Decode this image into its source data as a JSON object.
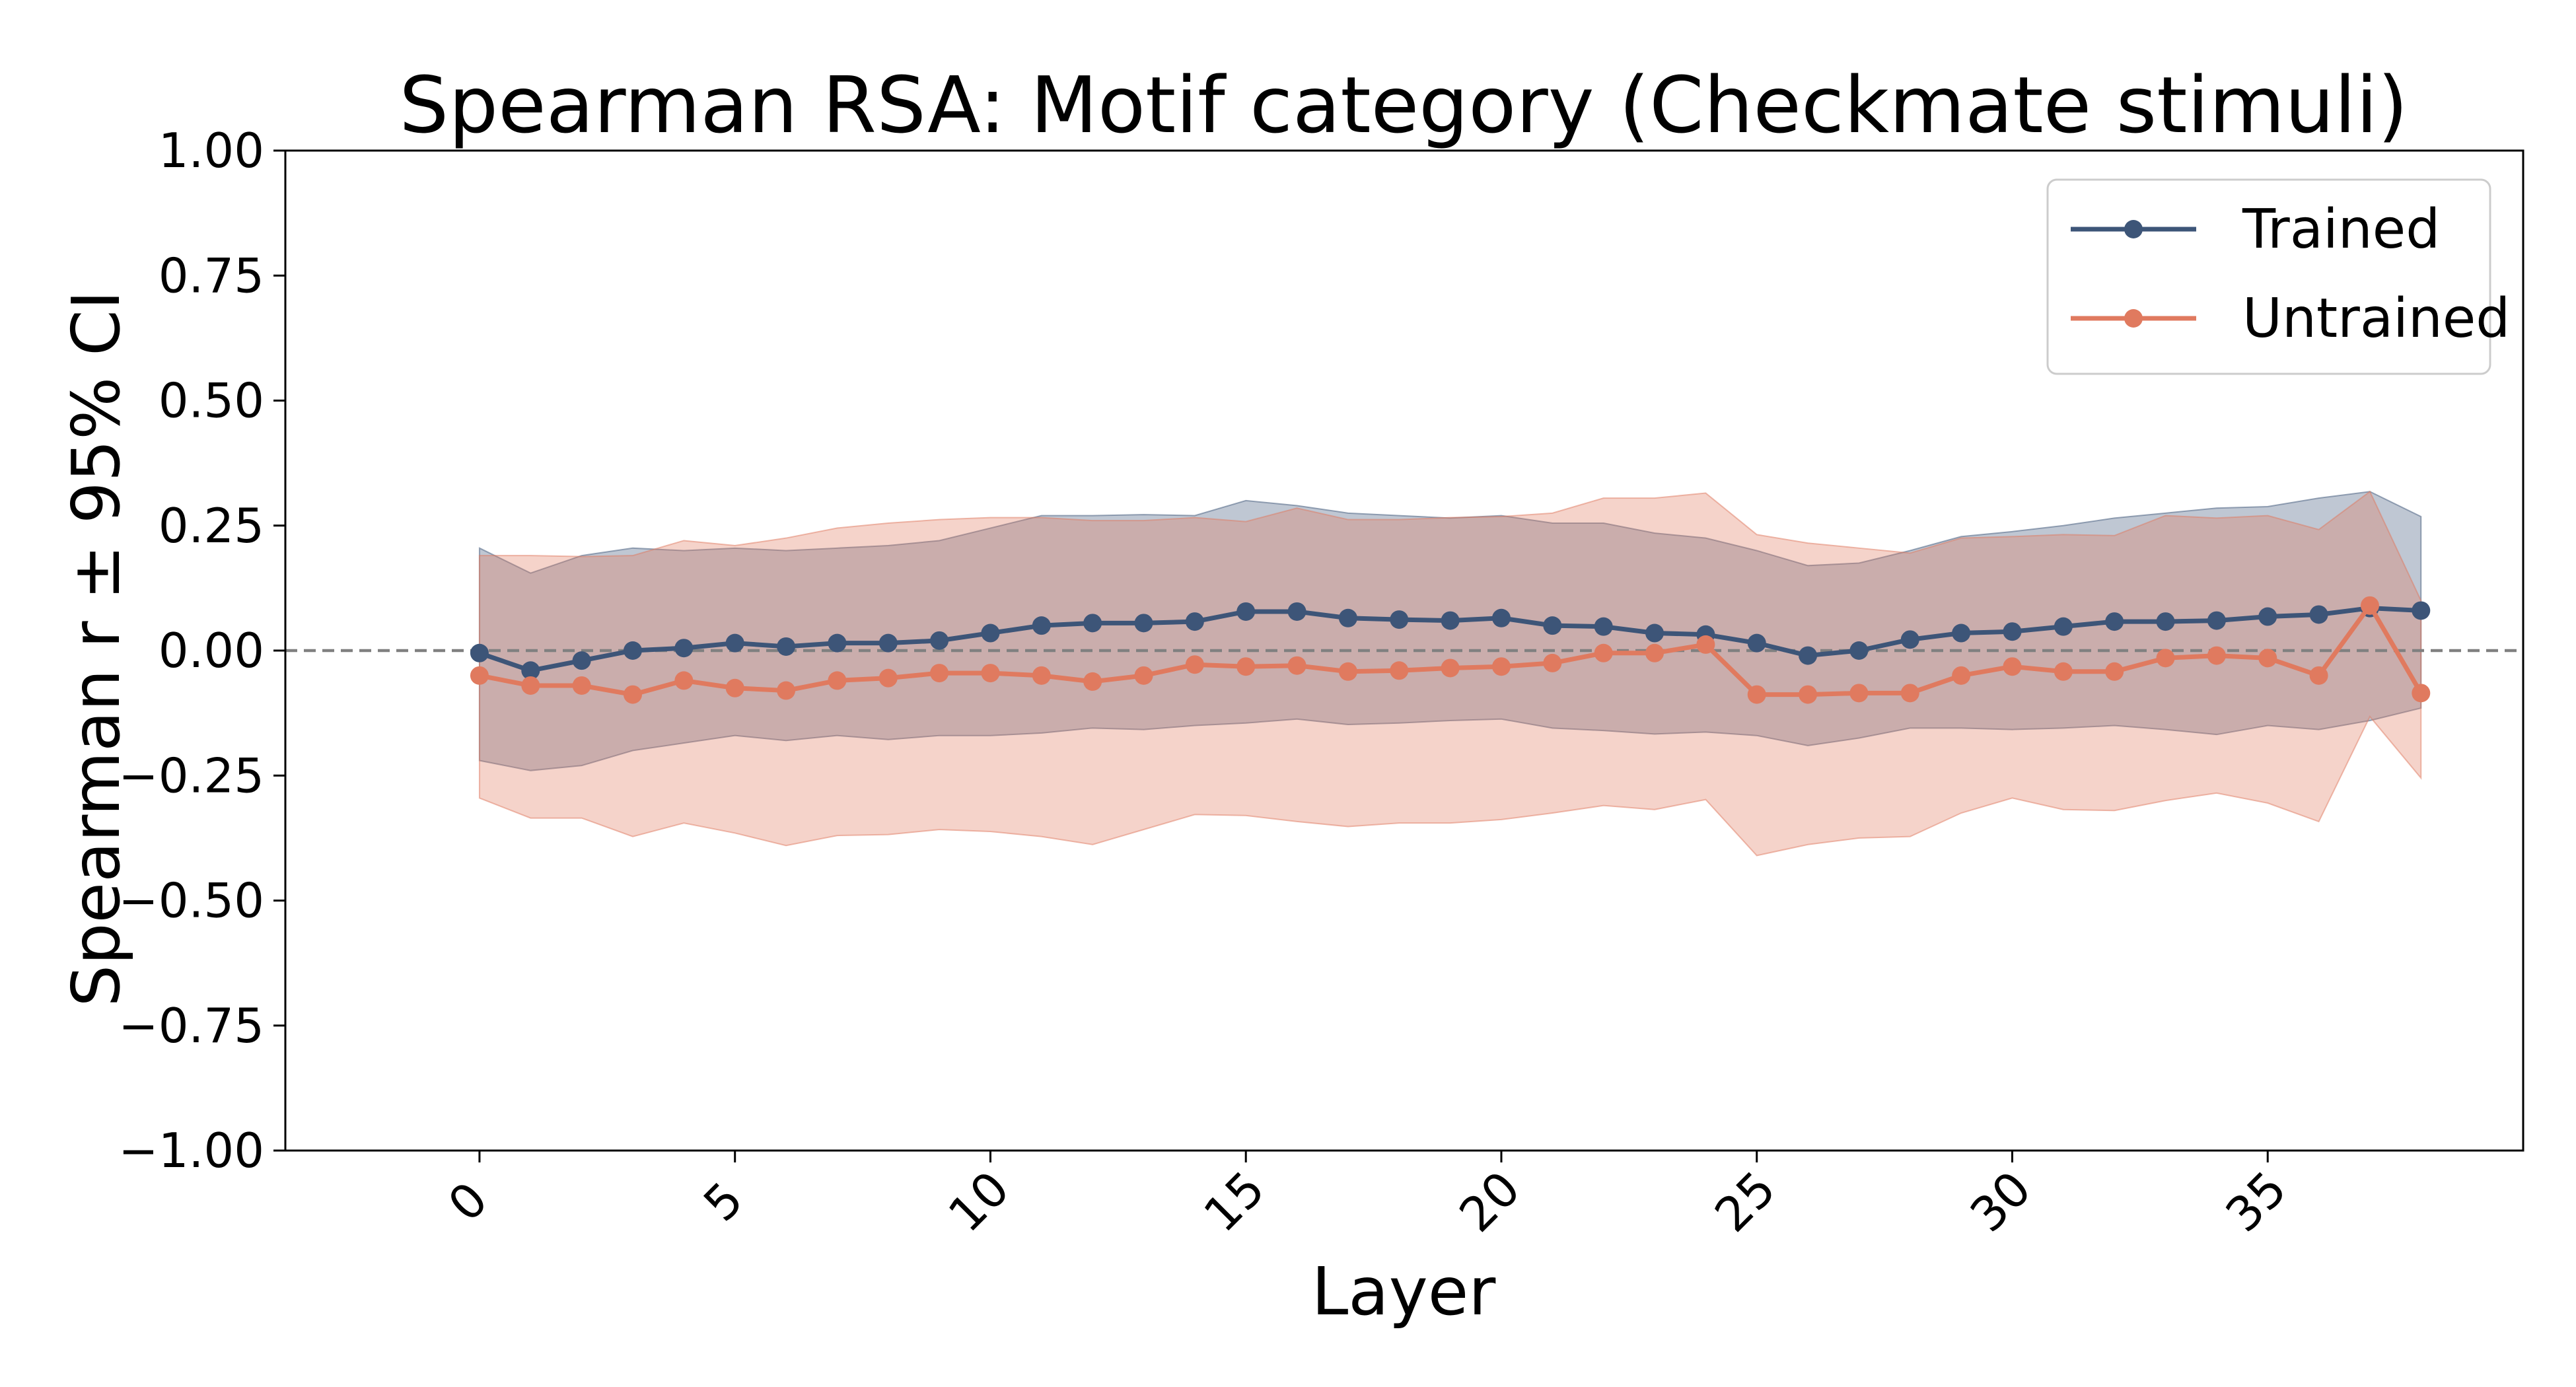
{
  "chart_data": {
    "type": "line",
    "title": "Spearman RSA: Motif category (Checkmate stimuli)",
    "xlabel": "Layer",
    "ylabel": "Spearman r ± 95% CI",
    "xlim": [
      -3.8,
      40.0
    ],
    "ylim": [
      -1.0,
      1.0
    ],
    "xticks": [
      0,
      5,
      10,
      15,
      20,
      25,
      30,
      35
    ],
    "xtick_labels": [
      "0",
      "5",
      "10",
      "15",
      "20",
      "25",
      "30",
      "35"
    ],
    "yticks": [
      1.0,
      0.75,
      0.5,
      0.25,
      0.0,
      -0.25,
      -0.5,
      -0.75,
      -1.0
    ],
    "ytick_labels": [
      "1.00",
      "0.75",
      "0.50",
      "0.25",
      "0.00",
      "−0.25",
      "−0.50",
      "−0.75",
      "−1.00"
    ],
    "reference_line_y": 0.0,
    "legend_position": "top-right",
    "grid": false,
    "x": [
      0,
      1,
      2,
      3,
      4,
      5,
      6,
      7,
      8,
      9,
      10,
      11,
      12,
      13,
      14,
      15,
      16,
      17,
      18,
      19,
      20,
      21,
      22,
      23,
      24,
      25,
      26,
      27,
      28,
      29,
      30,
      31,
      32,
      33,
      34,
      35,
      36,
      37,
      38
    ],
    "series": [
      {
        "name": "Trained",
        "color": "#3d5578",
        "values": [
          -0.005,
          -0.04,
          -0.02,
          0.0,
          0.005,
          0.015,
          0.008,
          0.015,
          0.015,
          0.02,
          0.035,
          0.05,
          0.055,
          0.055,
          0.058,
          0.078,
          0.078,
          0.065,
          0.062,
          0.06,
          0.065,
          0.05,
          0.048,
          0.035,
          0.032,
          0.015,
          -0.01,
          0.0,
          0.022,
          0.035,
          0.038,
          0.048,
          0.058,
          0.058,
          0.06,
          0.068,
          0.072,
          0.085,
          0.08
        ],
        "ci_upper": [
          0.205,
          0.155,
          0.19,
          0.205,
          0.2,
          0.205,
          0.2,
          0.205,
          0.21,
          0.22,
          0.245,
          0.27,
          0.27,
          0.272,
          0.27,
          0.3,
          0.29,
          0.275,
          0.27,
          0.265,
          0.27,
          0.255,
          0.255,
          0.235,
          0.225,
          0.2,
          0.17,
          0.175,
          0.2,
          0.228,
          0.238,
          0.25,
          0.265,
          0.275,
          0.285,
          0.288,
          0.305,
          0.318,
          0.268
        ],
        "ci_lower": [
          -0.22,
          -0.24,
          -0.23,
          -0.2,
          -0.185,
          -0.17,
          -0.18,
          -0.17,
          -0.178,
          -0.17,
          -0.17,
          -0.165,
          -0.155,
          -0.158,
          -0.15,
          -0.145,
          -0.137,
          -0.148,
          -0.145,
          -0.14,
          -0.137,
          -0.155,
          -0.16,
          -0.167,
          -0.163,
          -0.17,
          -0.19,
          -0.175,
          -0.155,
          -0.155,
          -0.158,
          -0.155,
          -0.15,
          -0.158,
          -0.168,
          -0.15,
          -0.158,
          -0.14,
          -0.115
        ]
      },
      {
        "name": "Untrained",
        "color": "#e07a5f",
        "values": [
          -0.05,
          -0.07,
          -0.07,
          -0.088,
          -0.06,
          -0.075,
          -0.08,
          -0.06,
          -0.055,
          -0.045,
          -0.045,
          -0.05,
          -0.062,
          -0.05,
          -0.028,
          -0.032,
          -0.03,
          -0.042,
          -0.04,
          -0.035,
          -0.032,
          -0.025,
          -0.005,
          -0.005,
          0.012,
          -0.088,
          -0.088,
          -0.085,
          -0.085,
          -0.05,
          -0.032,
          -0.042,
          -0.042,
          -0.015,
          -0.01,
          -0.015,
          -0.05,
          0.09,
          -0.085
        ],
        "ci_upper": [
          0.19,
          0.19,
          0.188,
          0.19,
          0.22,
          0.21,
          0.225,
          0.245,
          0.255,
          0.262,
          0.266,
          0.266,
          0.26,
          0.26,
          0.266,
          0.258,
          0.285,
          0.262,
          0.262,
          0.266,
          0.268,
          0.275,
          0.305,
          0.305,
          0.315,
          0.232,
          0.215,
          0.205,
          0.195,
          0.225,
          0.228,
          0.232,
          0.23,
          0.27,
          0.265,
          0.27,
          0.242,
          0.318,
          0.1
        ],
        "ci_lower": [
          -0.295,
          -0.335,
          -0.335,
          -0.372,
          -0.345,
          -0.365,
          -0.39,
          -0.37,
          -0.368,
          -0.358,
          -0.362,
          -0.372,
          -0.388,
          -0.358,
          -0.328,
          -0.33,
          -0.342,
          -0.352,
          -0.345,
          -0.345,
          -0.338,
          -0.325,
          -0.31,
          -0.318,
          -0.298,
          -0.41,
          -0.388,
          -0.375,
          -0.372,
          -0.325,
          -0.295,
          -0.318,
          -0.32,
          -0.3,
          -0.285,
          -0.305,
          -0.342,
          -0.132,
          -0.255
        ]
      }
    ]
  }
}
